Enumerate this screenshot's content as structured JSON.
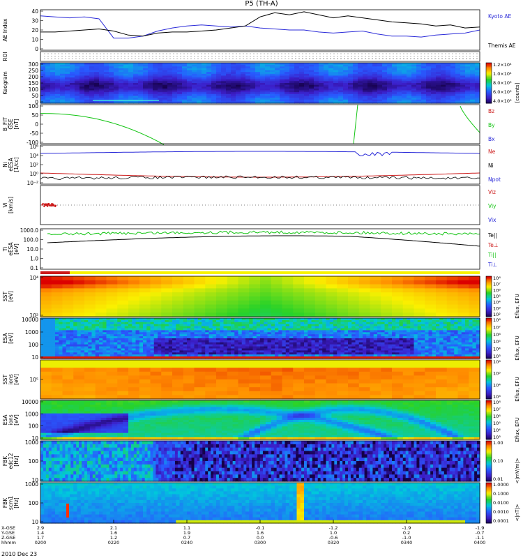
{
  "page": {
    "title": "P5 (TH-A)",
    "footer_date": "2010 Dec 23"
  },
  "chart_data": {
    "type": "line",
    "title": "P5 (TH-A)",
    "colors": {
      "blue": "#2a2ad8",
      "red": "#cc1a1a",
      "green": "#12c412",
      "black": "#000000",
      "yellow": "#f7f300"
    },
    "x_axis": {
      "label_rows": [
        "X-GSE",
        "Y-GSE",
        "Z-GSE",
        "hhmm"
      ],
      "ticks": [
        {
          "x": "2.9",
          "y": "1.4",
          "z": "1.7",
          "t": "0200"
        },
        {
          "x": "2.1",
          "y": "1.6",
          "z": "1.2",
          "t": "0220"
        },
        {
          "x": "1.1",
          "y": "1.9",
          "z": "0.7",
          "t": "0240"
        },
        {
          "x": "-0.1",
          "y": "1.6",
          "z": "0.0",
          "t": "0300"
        },
        {
          "x": "-1.2",
          "y": "1.0",
          "z": "-0.6",
          "t": "0320"
        },
        {
          "x": "-1.9",
          "y": "0.2",
          "z": "-1.0",
          "t": "0340"
        },
        {
          "x": "-1.9",
          "y": "-0.7",
          "z": "-1.1",
          "t": "0400"
        }
      ]
    },
    "panels": [
      {
        "id": "ae",
        "ylabel": "AE Index",
        "ylim": [
          0,
          40
        ],
        "ticks": [
          "40",
          "30",
          "20",
          "10",
          "0"
        ],
        "right_labels": [
          {
            "text": "Kyoto AE",
            "color": "#2a2ad8"
          },
          {
            "text": "Themis AE",
            "color": "#000000"
          }
        ],
        "series": [
          {
            "name": "Kyoto AE",
            "color": "#2a2ad8",
            "values": [
              34,
              33,
              32,
              33,
              31,
              12,
              12,
              14,
              19,
              22,
              24,
              25,
              24,
              23,
              24,
              22,
              21,
              20,
              20,
              18,
              17,
              18,
              19,
              16,
              14,
              14,
              13,
              15,
              16,
              17,
              20
            ]
          },
          {
            "name": "Themis AE",
            "color": "#000000",
            "values": [
              18,
              18,
              19,
              20,
              21,
              19,
              15,
              14,
              17,
              18,
              18,
              19,
              20,
              22,
              24,
              33,
              37,
              35,
              38,
              35,
              32,
              34,
              32,
              30,
              28,
              27,
              26,
              24,
              25,
              22,
              23
            ]
          }
        ]
      },
      {
        "id": "roi",
        "ylabel": "ROI",
        "ticks": []
      },
      {
        "id": "keogram",
        "ylabel": "Keogram",
        "ticks": [
          "300",
          "250",
          "200",
          "150",
          "100",
          "50",
          "0"
        ],
        "colorbar": {
          "label": "[counts]",
          "ticks": [
            "1.2×10⁴",
            "1.0×10⁴",
            "8.0×10³",
            "6.0×10³",
            "4.0×10³"
          ]
        }
      },
      {
        "id": "bfit",
        "ylabel": [
          "B_FIT",
          "GSE",
          "[nT]"
        ],
        "ylim": [
          -100,
          100
        ],
        "ticks": [
          "100",
          "50",
          "0",
          "-50",
          "-100"
        ],
        "right_labels": [
          {
            "text": "Bz",
            "color": "#cc1a1a"
          },
          {
            "text": "By",
            "color": "#12c412"
          },
          {
            "text": "Bx",
            "color": "#2a2ad8"
          }
        ]
      },
      {
        "id": "ni",
        "ylabel": [
          "Ni",
          "eESA",
          "[1/cc]"
        ],
        "ticks": [
          "10⁶",
          "10⁴",
          "10²",
          "10⁰",
          "10⁻²"
        ],
        "right_labels": [
          {
            "text": "Ne",
            "color": "#cc1a1a"
          },
          {
            "text": "Ni",
            "color": "#000000"
          },
          {
            "text": "Npot",
            "color": "#2a2ad8"
          }
        ]
      },
      {
        "id": "vi",
        "ylabel": [
          "Vi",
          "[km/s]"
        ],
        "ticks": [],
        "right_labels": [
          {
            "text": "Viz",
            "color": "#cc1a1a"
          },
          {
            "text": "Viy",
            "color": "#12c412"
          },
          {
            "text": "Vix",
            "color": "#2a2ad8"
          }
        ]
      },
      {
        "id": "ti",
        "ylabel": [
          "Ti",
          "eESA",
          "[eV]"
        ],
        "ticks": [
          "1000.0",
          "100.0",
          "10.0",
          "1.0",
          "0.1"
        ],
        "right_labels": [
          {
            "text": "Te||",
            "color": "#000000"
          },
          {
            "text": "Te⊥",
            "color": "#cc1a1a"
          },
          {
            "text": "Ti||",
            "color": "#12c412"
          },
          {
            "text": "Ti⊥",
            "color": "#2a2ad8"
          }
        ]
      },
      {
        "id": "sst_e",
        "ylabel": [
          "SST",
          "[eV]"
        ],
        "ticks": [
          "10⁴",
          "10²"
        ],
        "colorbar": {
          "label": "Eflux, EFU",
          "ticks": [
            "10⁸",
            "10⁷",
            "10⁶",
            "10⁵",
            "10⁴",
            "10³",
            "10²"
          ]
        }
      },
      {
        "id": "esa_e",
        "ylabel": [
          "ESA",
          "[eV]"
        ],
        "ticks": [
          "10000",
          "1000",
          "100",
          "10"
        ],
        "colorbar": {
          "label": "Eflux, EFU",
          "ticks": [
            "10⁸",
            "10⁷",
            "10⁶",
            "10⁵",
            "10⁴",
            "10³"
          ]
        }
      },
      {
        "id": "sst_i",
        "ylabel": [
          "SST",
          "ions",
          "[eV]"
        ],
        "ticks": [
          "10⁵"
        ],
        "colorbar": {
          "label": "Eflux, EFU",
          "ticks": [
            "10⁶",
            "10⁵",
            "10⁴",
            "10³"
          ]
        }
      },
      {
        "id": "esa_i",
        "ylabel": [
          "ESA",
          "ions",
          "[eV]"
        ],
        "ticks": [
          "10000",
          "1000",
          "100",
          "10"
        ],
        "colorbar": {
          "label": "Eflux, EFU",
          "ticks": [
            "10⁸",
            "10⁷",
            "10⁶",
            "10⁵",
            "10⁴",
            "10³"
          ]
        }
      },
      {
        "id": "fbk_e",
        "ylabel": [
          "FBK",
          "edc12",
          "[Hz]"
        ],
        "ticks": [
          "1000",
          "100",
          "10"
        ],
        "colorbar": {
          "label": "<|mV/m|>",
          "ticks": [
            "1.00",
            "0.10",
            "0.01"
          ]
        }
      },
      {
        "id": "fbk_b",
        "ylabel": [
          "FBK",
          "scm1",
          "[Hz]"
        ],
        "ticks": [
          "1000",
          "100",
          "10"
        ],
        "colorbar": {
          "label": "<|nT|>",
          "ticks": [
            "1.0000",
            "0.1000",
            "0.0100",
            "0.0010",
            "0.0001"
          ]
        }
      }
    ]
  }
}
